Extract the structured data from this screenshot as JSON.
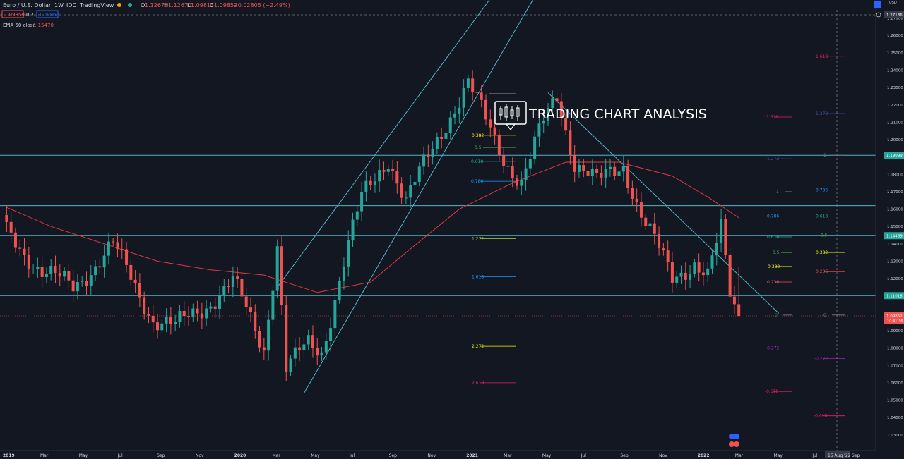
{
  "header": {
    "symbol": "Euro / U.S. Dollar",
    "interval": "1W",
    "exchange": "IDC",
    "source": "TradingView",
    "open_label": "O",
    "open": "1.12670",
    "high_label": "H",
    "high": "1.12670",
    "low_label": "L",
    "low": "1.09813",
    "close_label": "C",
    "close": "1.09852",
    "change": "−0.02805 (−2.49%)",
    "bid": "1.09859",
    "spread": "0.7",
    "ask": "1.09867",
    "indicator_label": "EMA 50 close",
    "indicator_value": "1.15470"
  },
  "watermark": "TRADING CHART ANALYSIS",
  "price_axis": {
    "currency": "USD",
    "labels": [
      "1.27000",
      "1.26000",
      "1.25000",
      "1.24000",
      "1.23000",
      "1.22000",
      "1.21000",
      "1.20000",
      "1.19000",
      "1.18000",
      "1.17000",
      "1.16000",
      "1.15000",
      "1.14000",
      "1.13000",
      "1.12000",
      "1.11000",
      "1.10000",
      "1.09000",
      "1.08000",
      "1.07000",
      "1.06000",
      "1.05000",
      "1.04000",
      "1.03000"
    ],
    "tags": [
      {
        "price": 1.27186,
        "text": "1.27186",
        "color": "#363a45"
      },
      {
        "price": 1.19099,
        "text": "1.19099",
        "color": "#26a69a"
      },
      {
        "price": 1.14469,
        "text": "1.14469",
        "color": "#26a69a"
      },
      {
        "price": 1.11018,
        "text": "1.11018",
        "color": "#26a69a"
      },
      {
        "price": 1.09852,
        "text": "1.09852",
        "color": "#ef5350"
      }
    ],
    "countdown": "10:41:36"
  },
  "time_axis": {
    "labels": [
      "2019",
      "Mar",
      "May",
      "Jul",
      "Sep",
      "Nov",
      "2020",
      "Mar",
      "May",
      "Jul",
      "Sep",
      "Nov",
      "2021",
      "Mar",
      "May",
      "Jul",
      "Sep",
      "Nov",
      "2022",
      "Mar",
      "May",
      "Jul",
      "Sep"
    ],
    "crosshair_label": "15 Aug '22"
  },
  "colors": {
    "background": "#131722",
    "up": "#26a69a",
    "down": "#ef5350",
    "ema": "#e0393e",
    "horizontal_line": "#4fb6c6",
    "trendline": "#4fb6c6"
  },
  "chart_data": {
    "type": "candlestick",
    "title": "Euro / U.S. Dollar",
    "xlabel": "",
    "ylabel": "",
    "ylim": [
      1.02,
      1.28
    ],
    "x_range": [
      "2019-01-01",
      "2022-09-30"
    ],
    "series": [
      {
        "name": "Euro / U.S. Dollar",
        "type": "candlestick",
        "ohlc_path": [
          [
            "2019-01-07",
            1.147
          ],
          [
            "2019-03-04",
            1.124
          ],
          [
            "2019-04-22",
            1.115
          ],
          [
            "2019-06-24",
            1.139
          ],
          [
            "2019-08-26",
            1.097
          ],
          [
            "2019-09-30",
            1.092
          ],
          [
            "2019-11-25",
            1.107
          ],
          [
            "2019-12-30",
            1.118
          ],
          [
            "2020-02-17",
            1.08
          ],
          [
            "2020-03-09",
            1.14
          ],
          [
            "2020-03-23",
            1.068
          ],
          [
            "2020-04-27",
            1.082
          ],
          [
            "2020-05-18",
            1.078
          ],
          [
            "2020-06-22",
            1.13
          ],
          [
            "2020-07-20",
            1.166
          ],
          [
            "2020-08-31",
            1.19
          ],
          [
            "2020-09-28",
            1.164
          ],
          [
            "2020-11-02",
            1.19
          ],
          [
            "2020-11-30",
            1.21
          ],
          [
            "2021-01-04",
            1.232
          ],
          [
            "2021-03-01",
            1.19
          ],
          [
            "2021-03-29",
            1.175
          ],
          [
            "2021-05-03",
            1.21
          ],
          [
            "2021-05-24",
            1.226
          ],
          [
            "2021-06-21",
            1.187
          ],
          [
            "2021-07-26",
            1.175
          ],
          [
            "2021-09-06",
            1.186
          ],
          [
            "2021-10-04",
            1.157
          ],
          [
            "2021-11-22",
            1.12
          ],
          [
            "2021-12-27",
            1.13
          ],
          [
            "2022-01-17",
            1.121
          ],
          [
            "2022-02-07",
            1.148
          ],
          [
            "2022-02-21",
            1.111
          ],
          [
            "2022-03-07",
            1.098
          ]
        ]
      },
      {
        "name": "EMA 50 close",
        "type": "line",
        "values": [
          [
            "2019-01-07",
            1.161
          ],
          [
            "2019-03-18",
            1.15
          ],
          [
            "2019-06-10",
            1.14
          ],
          [
            "2019-09-02",
            1.13
          ],
          [
            "2019-11-25",
            1.125
          ],
          [
            "2020-02-17",
            1.122
          ],
          [
            "2020-05-11",
            1.112
          ],
          [
            "2020-08-03",
            1.118
          ],
          [
            "2020-09-28",
            1.135
          ],
          [
            "2020-12-21",
            1.16
          ],
          [
            "2021-03-15",
            1.175
          ],
          [
            "2021-06-07",
            1.187
          ],
          [
            "2021-08-30",
            1.187
          ],
          [
            "2021-11-22",
            1.179
          ],
          [
            "2022-01-17",
            1.167
          ],
          [
            "2022-03-07",
            1.155
          ]
        ]
      }
    ],
    "horizontal_levels": [
      1.19099,
      1.162,
      1.14469,
      1.11018
    ],
    "fib_levels": [
      {
        "label": "0",
        "price": 1.2265,
        "color": "#787b86"
      },
      {
        "label": "0.382",
        "price": 1.2025,
        "color": "#f7f700"
      },
      {
        "label": "0.5",
        "price": 1.1955,
        "color": "#4caf50"
      },
      {
        "label": "0.618",
        "price": 1.1875,
        "color": "#26a69a"
      },
      {
        "label": "0.786",
        "price": 1.176,
        "color": "#2196f3"
      },
      {
        "label": "1.272",
        "price": 1.143,
        "color": "#8bc34a"
      },
      {
        "label": "1.618",
        "price": 1.121,
        "color": "#2196f3"
      },
      {
        "label": "2.272",
        "price": 1.081,
        "color": "#f7f700"
      },
      {
        "label": "2.618",
        "price": 1.06,
        "color": "#e91e63"
      },
      {
        "label": "1.618",
        "price": 1.248,
        "color": "#e91e63"
      },
      {
        "label": "1.618",
        "price": 1.213,
        "color": "#e91e63"
      },
      {
        "label": "1.272",
        "price": 1.215,
        "color": "#3f51b5"
      },
      {
        "label": "1.272",
        "price": 1.189,
        "color": "#3f51b5"
      },
      {
        "label": "1",
        "price": 1.17,
        "color": "#787b86"
      },
      {
        "label": "1",
        "price": 1.191,
        "color": "#787b86"
      },
      {
        "label": "0.786",
        "price": 1.156,
        "color": "#2196f3"
      },
      {
        "label": "0.786",
        "price": 1.171,
        "color": "#2196f3"
      },
      {
        "label": "0.618",
        "price": 1.144,
        "color": "#26a69a"
      },
      {
        "label": "0.618",
        "price": 1.156,
        "color": "#26a69a"
      },
      {
        "label": "0.5",
        "price": 1.135,
        "color": "#4caf50"
      },
      {
        "label": "0.5",
        "price": 1.145,
        "color": "#4caf50"
      },
      {
        "label": "0.382",
        "price": 1.127,
        "color": "#f7f700"
      },
      {
        "label": "0.382",
        "price": 1.135,
        "color": "#f7f700"
      },
      {
        "label": "0.236",
        "price": 1.118,
        "color": "#ef5350"
      },
      {
        "label": "0.236",
        "price": 1.124,
        "color": "#ef5350"
      },
      {
        "label": "0",
        "price": 1.099,
        "color": "#787b86"
      },
      {
        "label": "0",
        "price": 1.099,
        "color": "#787b86"
      },
      {
        "label": "-0.272",
        "price": 1.08,
        "color": "#9c27b0"
      },
      {
        "label": "-0.272",
        "price": 1.074,
        "color": "#9c27b0"
      },
      {
        "label": "-0.618",
        "price": 1.055,
        "color": "#e91e63"
      },
      {
        "label": "-0.618",
        "price": 1.041,
        "color": "#e91e63"
      }
    ],
    "grid": false,
    "legend": "top-left"
  }
}
